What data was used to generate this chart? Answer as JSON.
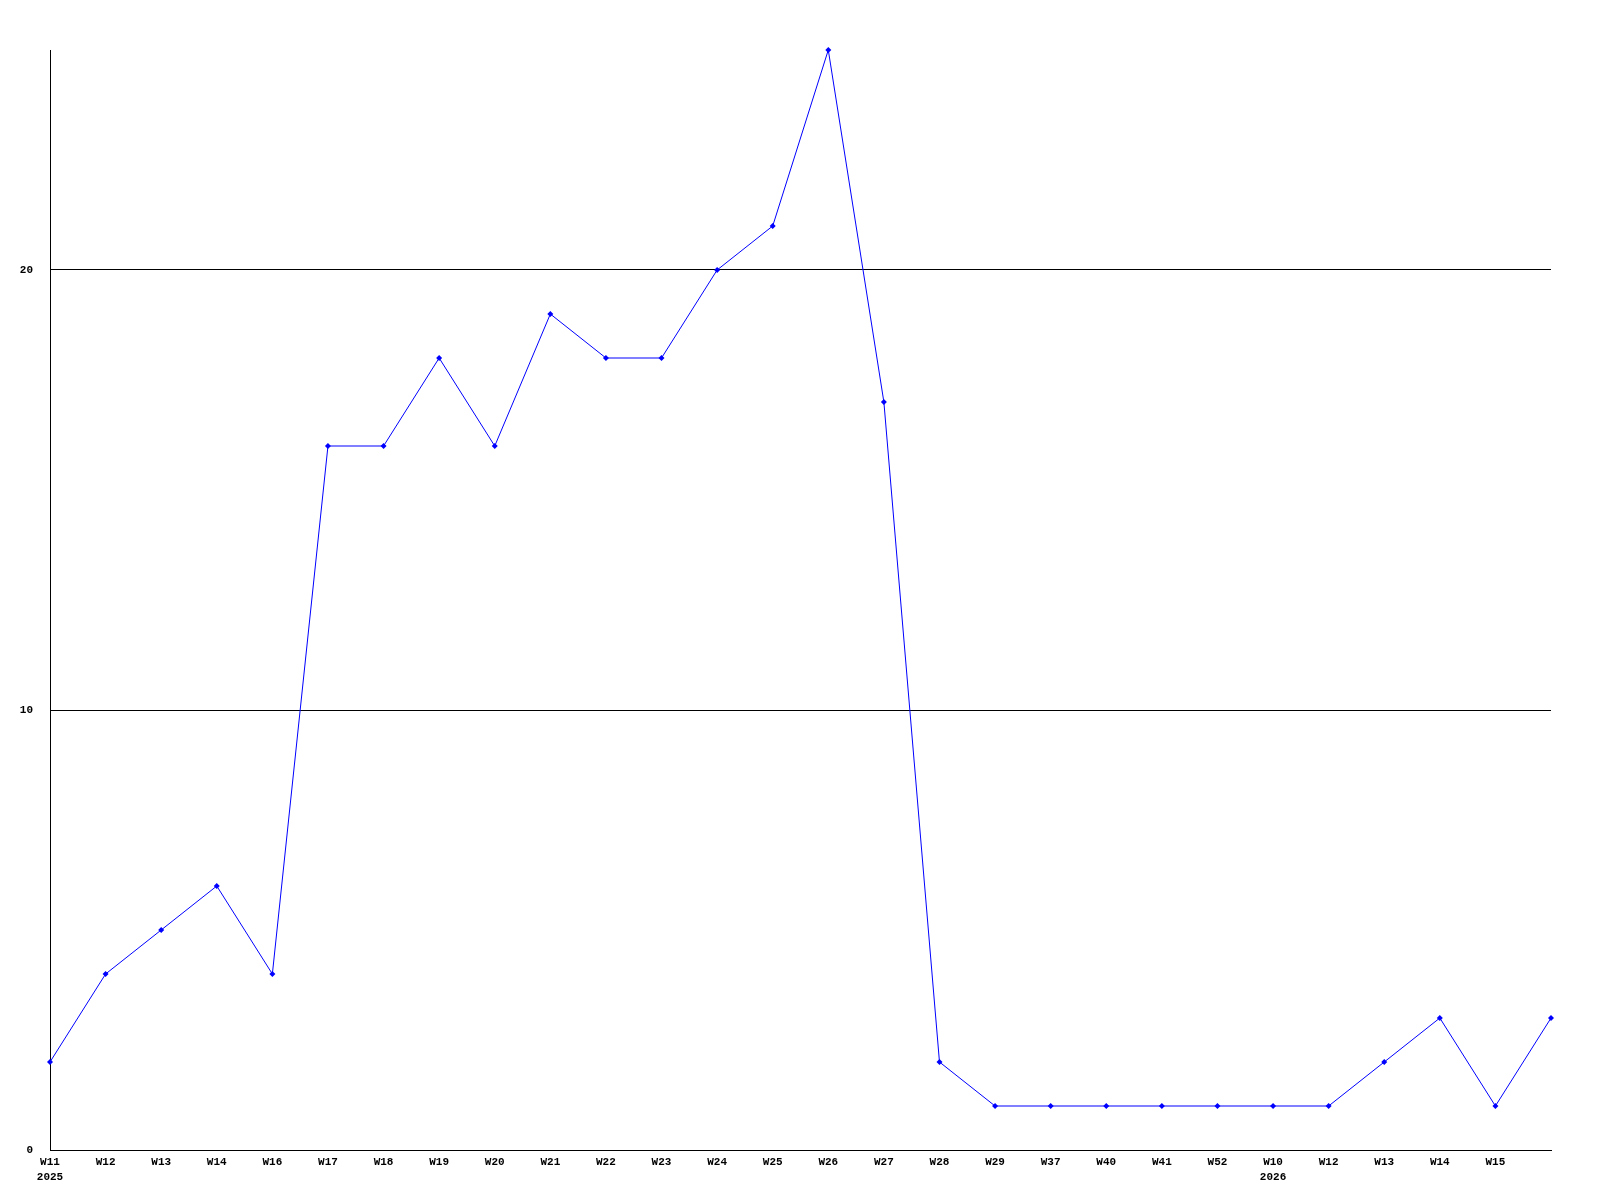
{
  "chart_data": {
    "type": "line",
    "categories": [
      "W11\n2025",
      "W12",
      "W13",
      "W14",
      "W16",
      "W17",
      "W18",
      "W19",
      "W20",
      "W21",
      "W22",
      "W23",
      "W24",
      "W25",
      "W26",
      "W27",
      "W28",
      "W29",
      "W37",
      "W40",
      "W41",
      "W52",
      "W10\n2026",
      "W12",
      "W13",
      "W14",
      "W15",
      null
    ],
    "series": [
      {
        "color": "#0000ff",
        "values": [
          2,
          4,
          5,
          6,
          4,
          16,
          16,
          18,
          16,
          19,
          18,
          18,
          20,
          21,
          25,
          17,
          2,
          1,
          1,
          1,
          1,
          1,
          1,
          1,
          2,
          3,
          1,
          3
        ]
      }
    ],
    "ylim": [
      0,
      25
    ],
    "yticks": [
      0,
      10,
      20
    ],
    "grid": "y",
    "marker": "diamond",
    "line_style": "solid"
  }
}
